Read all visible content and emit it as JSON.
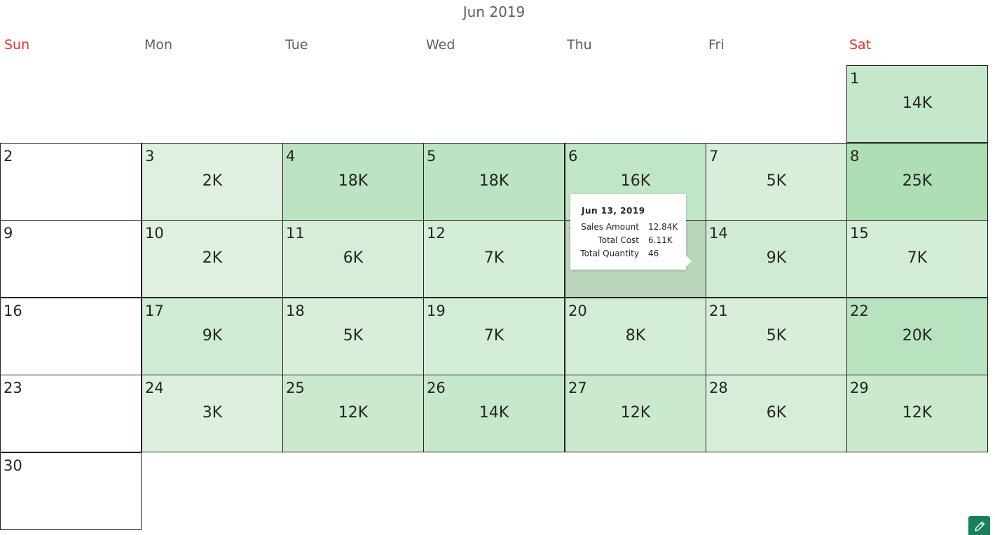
{
  "month_title": "Jun 2019",
  "weekdays": [
    "Sun",
    "Mon",
    "Tue",
    "Wed",
    "Thu",
    "Fri",
    "Sat"
  ],
  "colors": {
    "weekend_header": "#e0362c",
    "scale_light": "#e3f2e5",
    "scale_dark": "#aedfb4",
    "hover_cell": "#b9d6bb",
    "edit_button": "#1a7f5a"
  },
  "days": [
    {
      "day": "1",
      "value": "14K",
      "amount": 14
    },
    {
      "day": "2",
      "value": "",
      "amount": 0
    },
    {
      "day": "3",
      "value": "2K",
      "amount": 2
    },
    {
      "day": "4",
      "value": "18K",
      "amount": 18
    },
    {
      "day": "5",
      "value": "18K",
      "amount": 18
    },
    {
      "day": "6",
      "value": "16K",
      "amount": 16
    },
    {
      "day": "7",
      "value": "5K",
      "amount": 5
    },
    {
      "day": "8",
      "value": "25K",
      "amount": 25
    },
    {
      "day": "9",
      "value": "",
      "amount": 0
    },
    {
      "day": "10",
      "value": "2K",
      "amount": 2
    },
    {
      "day": "11",
      "value": "6K",
      "amount": 6
    },
    {
      "day": "12",
      "value": "7K",
      "amount": 7
    },
    {
      "day": "13",
      "value": "",
      "amount": 13,
      "hovered": true
    },
    {
      "day": "14",
      "value": "9K",
      "amount": 9
    },
    {
      "day": "15",
      "value": "7K",
      "amount": 7
    },
    {
      "day": "16",
      "value": "",
      "amount": 0
    },
    {
      "day": "17",
      "value": "9K",
      "amount": 9
    },
    {
      "day": "18",
      "value": "5K",
      "amount": 5
    },
    {
      "day": "19",
      "value": "7K",
      "amount": 7
    },
    {
      "day": "20",
      "value": "8K",
      "amount": 8
    },
    {
      "day": "21",
      "value": "5K",
      "amount": 5
    },
    {
      "day": "22",
      "value": "20K",
      "amount": 20
    },
    {
      "day": "23",
      "value": "",
      "amount": 0
    },
    {
      "day": "24",
      "value": "3K",
      "amount": 3
    },
    {
      "day": "25",
      "value": "12K",
      "amount": 12
    },
    {
      "day": "26",
      "value": "14K",
      "amount": 14
    },
    {
      "day": "27",
      "value": "12K",
      "amount": 12
    },
    {
      "day": "28",
      "value": "6K",
      "amount": 6
    },
    {
      "day": "29",
      "value": "12K",
      "amount": 12
    },
    {
      "day": "30",
      "value": "",
      "amount": 0
    }
  ],
  "tooltip": {
    "title": "Jun 13, 2019",
    "rows": [
      {
        "label": "Sales Amount",
        "value": "12.84K"
      },
      {
        "label": "Total Cost",
        "value": "6.11K"
      },
      {
        "label": "Total Quantity",
        "value": "46"
      }
    ]
  },
  "edit_button_icon": "pencil-icon"
}
